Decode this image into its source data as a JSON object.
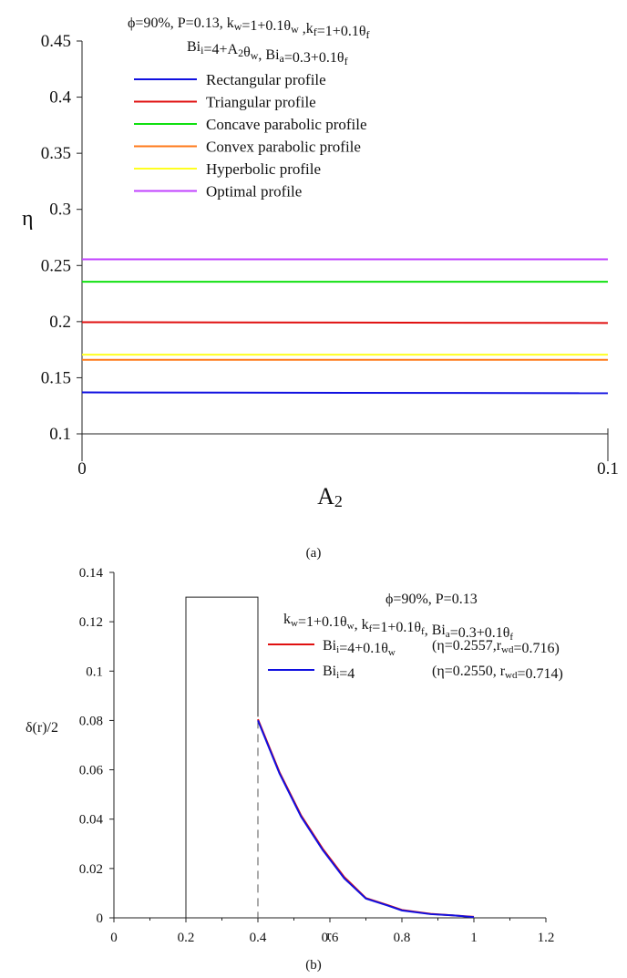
{
  "chart_data": [
    {
      "panel": "(a)",
      "type": "line",
      "annotation_lines": [
        "ϕ=90%, P=0.13, k",
        "Bi"
      ],
      "annotation_line1": [
        {
          "t": "ϕ=90%, P=0.13, k",
          "s": "n"
        },
        {
          "t": "w",
          "s": "sub"
        },
        {
          "t": "=1+0.1θ",
          "s": "n"
        },
        {
          "t": "w",
          "s": "sub"
        },
        {
          "t": " ,k",
          "s": "n"
        },
        {
          "t": "f",
          "s": "sub"
        },
        {
          "t": "=1+0.1θ",
          "s": "n"
        },
        {
          "t": "f",
          "s": "sub"
        }
      ],
      "annotation_line2": [
        {
          "t": "Bi",
          "s": "n"
        },
        {
          "t": "i",
          "s": "sub"
        },
        {
          "t": "=4+A",
          "s": "n"
        },
        {
          "t": "2",
          "s": "sub"
        },
        {
          "t": "θ",
          "s": "n"
        },
        {
          "t": "w",
          "s": "sub"
        },
        {
          "t": ", Bi",
          "s": "n"
        },
        {
          "t": "a",
          "s": "sub"
        },
        {
          "t": "=0.3+0.1θ",
          "s": "n"
        },
        {
          "t": "f",
          "s": "sub"
        }
      ],
      "ylabel": "η",
      "xlabel": "A",
      "xlabel_sub": "2",
      "xlim": [
        0,
        0.1
      ],
      "ylim": [
        0.1,
        0.45
      ],
      "x_ticks": [
        "0",
        "0.1"
      ],
      "y_ticks": [
        "0.1",
        "0.15",
        "0.2",
        "0.25",
        "0.3",
        "0.35",
        "0.4",
        "0.45"
      ],
      "x": [
        0,
        0.1
      ],
      "series": [
        {
          "name": "Rectangular profile",
          "color": "#1010e0",
          "values": [
            0.1369,
            0.1362
          ]
        },
        {
          "name": "Triangular profile",
          "color": "#e01010",
          "values": [
            0.1995,
            0.1988
          ]
        },
        {
          "name": "Concave parabolic profile",
          "color": "#10e010",
          "values": [
            0.2355,
            0.2355
          ]
        },
        {
          "name": "Convex parabolic profile",
          "color": "#ff7a1a",
          "values": [
            0.166,
            0.166
          ]
        },
        {
          "name": "Hyperbolic profile",
          "color": "#ffff20",
          "values": [
            0.1705,
            0.1705
          ]
        },
        {
          "name": "Optimal profile",
          "color": "#c040ff",
          "values": [
            0.2555,
            0.2555
          ]
        }
      ]
    },
    {
      "panel": "(b)",
      "type": "line",
      "xlabel": "r",
      "ylabel": "δ(r)/2",
      "xlim": [
        0,
        1.2
      ],
      "ylim": [
        0,
        0.14
      ],
      "x_ticks": [
        "0",
        "0.2",
        "0.4",
        "0.6",
        "0.8",
        "1",
        "1.2"
      ],
      "y_ticks": [
        "0",
        "0.02",
        "0.04",
        "0.06",
        "0.08",
        "0.1",
        "0.12",
        "0.14"
      ],
      "annotation_line1": [
        {
          "t": "ϕ=90%, P=0.13",
          "s": "n"
        }
      ],
      "annotation_line2": [
        {
          "t": "k",
          "s": "n"
        },
        {
          "t": "w",
          "s": "sub"
        },
        {
          "t": "=1+0.1θ",
          "s": "n"
        },
        {
          "t": "w",
          "s": "sub"
        },
        {
          "t": ", k",
          "s": "n"
        },
        {
          "t": "f",
          "s": "sub"
        },
        {
          "t": "=1+0.1θ",
          "s": "n"
        },
        {
          "t": "f",
          "s": "sub"
        },
        {
          "t": ", Bi",
          "s": "n"
        },
        {
          "t": "a",
          "s": "sub"
        },
        {
          "t": "=0.3+0.1θ",
          "s": "n"
        },
        {
          "t": "f",
          "s": "sub"
        }
      ],
      "legend": [
        {
          "color": "#e01010",
          "label": [
            {
              "t": "Bi",
              "s": "n"
            },
            {
              "t": "i",
              "s": "sub"
            },
            {
              "t": "=4+0.1θ",
              "s": "n"
            },
            {
              "t": "w",
              "s": "sub"
            }
          ],
          "metric": [
            {
              "t": "(η=0.2557,r",
              "s": "n"
            },
            {
              "t": "wd",
              "s": "sub"
            },
            {
              "t": "=0.716)",
              "s": "n"
            }
          ]
        },
        {
          "color": "#1010e0",
          "label": [
            {
              "t": "Bi",
              "s": "n"
            },
            {
              "t": "i",
              "s": "sub"
            },
            {
              "t": "=4",
              "s": "n"
            }
          ],
          "metric": [
            {
              "t": "(η=0.2550, r",
              "s": "n"
            },
            {
              "t": "wd",
              "s": "sub"
            },
            {
              "t": "=0.714)",
              "s": "n"
            }
          ]
        }
      ],
      "rect_profile": {
        "x_start": 0.2,
        "x_end": 0.4,
        "height": 0.13
      },
      "dashed_x": 0.4,
      "series": [
        {
          "name": "Bi_i=4+0.1θ_w",
          "color": "#e01010",
          "x": [
            0.4,
            0.46,
            0.52,
            0.58,
            0.64,
            0.7,
            0.76,
            0.8,
            0.88,
            0.94,
            1.0
          ],
          "values": [
            0.0805,
            0.059,
            0.0415,
            0.028,
            0.0165,
            0.008,
            0.0052,
            0.0032,
            0.0016,
            0.001,
            0.0004
          ]
        },
        {
          "name": "Bi_i=4",
          "color": "#1010e0",
          "x": [
            0.4,
            0.46,
            0.52,
            0.58,
            0.64,
            0.7,
            0.76,
            0.8,
            0.88,
            0.94,
            1.0
          ],
          "values": [
            0.08,
            0.0585,
            0.041,
            0.0275,
            0.016,
            0.0078,
            0.005,
            0.003,
            0.0015,
            0.001,
            0.0003
          ]
        }
      ]
    }
  ],
  "captions": {
    "a": "(a)",
    "b": "(b)"
  }
}
